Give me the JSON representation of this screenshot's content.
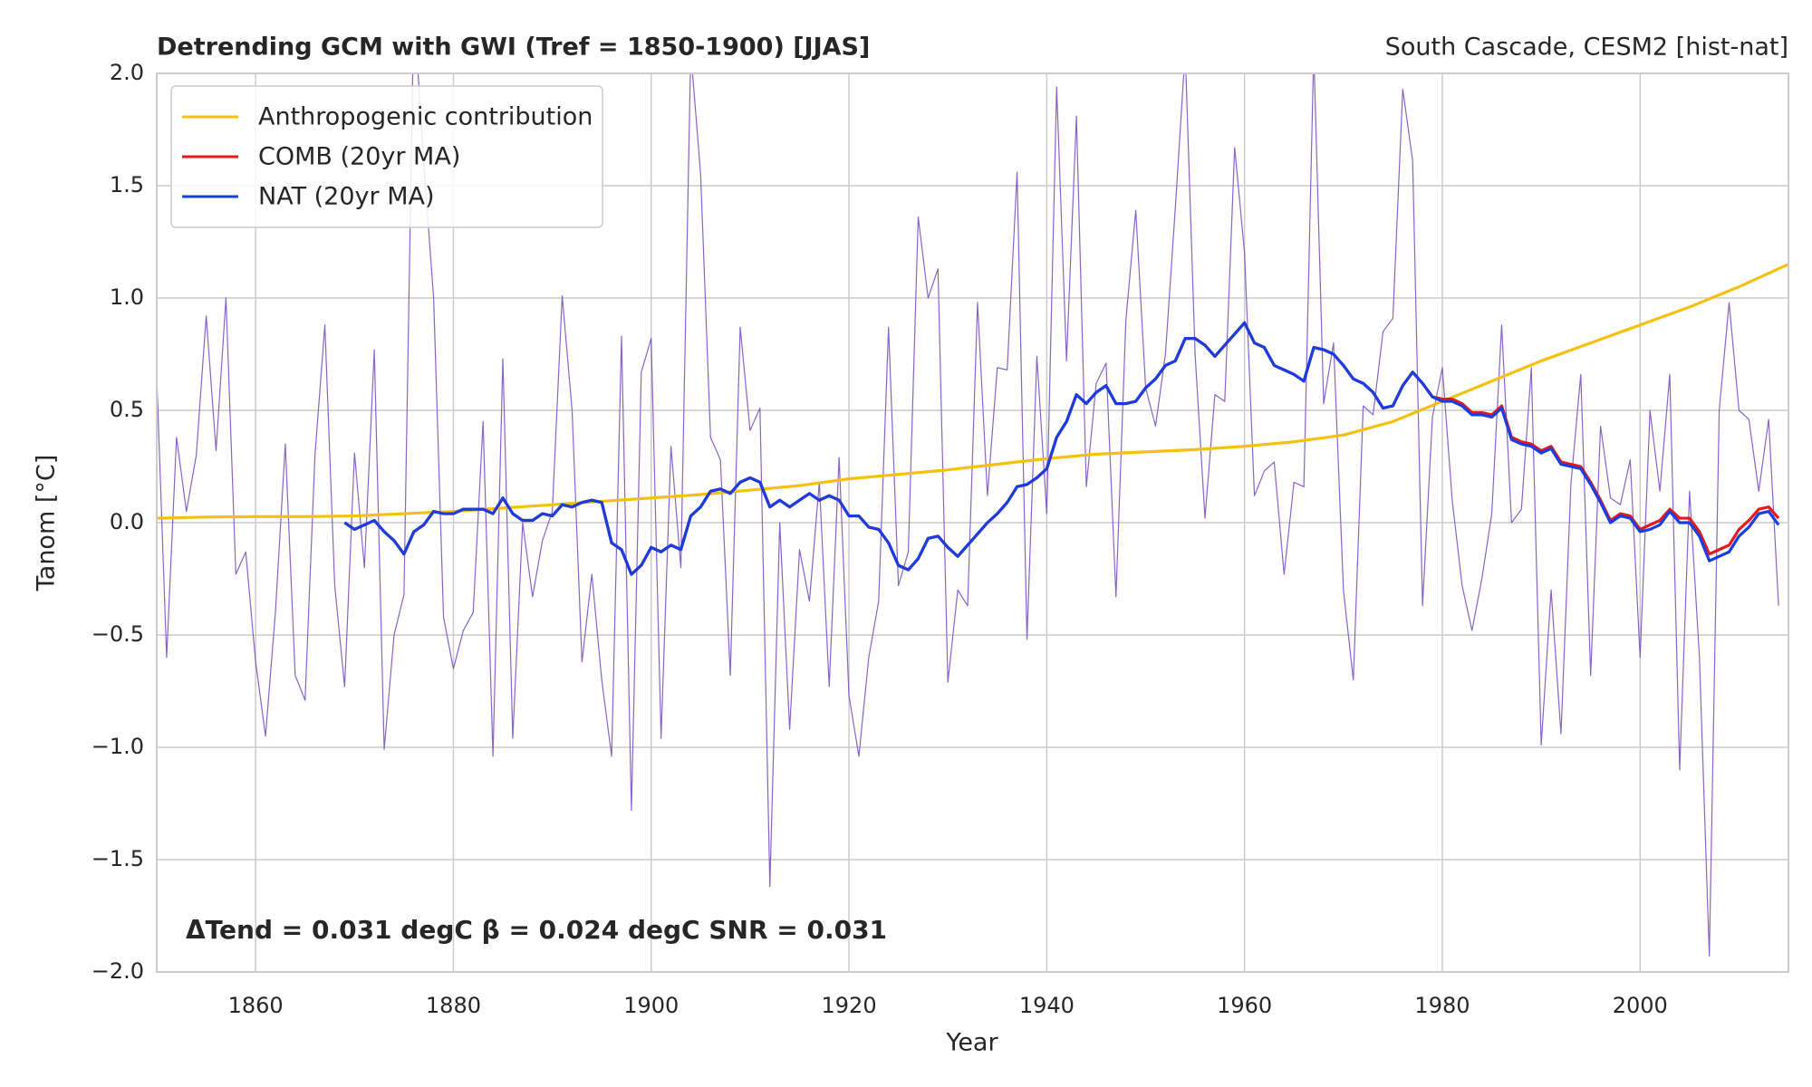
{
  "chart_data": {
    "type": "line",
    "title": "Detrending GCM with GWI (Tref = 1850-1900) [JJAS]",
    "right_title": "South Cascade, CESM2 [hist-nat]",
    "xlabel": "Year",
    "ylabel": "Tanom [°C]",
    "annotation": "ΔTend = 0.031 degC β = 0.024 degC SNR =  0.031",
    "xlim": [
      1850,
      2015
    ],
    "ylim": [
      -2.0,
      2.0
    ],
    "xticks": [
      1860,
      1880,
      1900,
      1920,
      1940,
      1960,
      1980,
      2000
    ],
    "yticks": [
      {
        "value": -2.0,
        "label": "−2.0"
      },
      {
        "value": -1.5,
        "label": "−1.5"
      },
      {
        "value": -1.0,
        "label": "−1.0"
      },
      {
        "value": -0.5,
        "label": "−0.5"
      },
      {
        "value": 0.0,
        "label": "0.0"
      },
      {
        "value": 0.5,
        "label": "0.5"
      },
      {
        "value": 1.0,
        "label": "1.0"
      },
      {
        "value": 1.5,
        "label": "1.5"
      },
      {
        "value": 2.0,
        "label": "2.0"
      }
    ],
    "grid": true,
    "legend": "upper left",
    "series": [
      {
        "color": "#7b52c2",
        "x": [
          1850,
          1851,
          1852,
          1853,
          1854,
          1855,
          1856,
          1857,
          1858,
          1859,
          1860,
          1861,
          1862,
          1863,
          1864,
          1865,
          1866,
          1867,
          1868,
          1869,
          1870,
          1871,
          1872,
          1873,
          1874,
          1875,
          1876,
          1877,
          1878,
          1879,
          1880,
          1881,
          1882,
          1883,
          1884,
          1885,
          1886,
          1887,
          1888,
          1889,
          1890,
          1891,
          1892,
          1893,
          1894,
          1895,
          1896,
          1897,
          1898,
          1899,
          1900,
          1901,
          1902,
          1903,
          1904,
          1905,
          1906,
          1907,
          1908,
          1909,
          1910,
          1911,
          1912,
          1913,
          1914,
          1915,
          1916,
          1917,
          1918,
          1919,
          1920,
          1921,
          1922,
          1923,
          1924,
          1925,
          1926,
          1927,
          1928,
          1929,
          1930,
          1931,
          1932,
          1933,
          1934,
          1935,
          1936,
          1937,
          1938,
          1939,
          1940,
          1941,
          1942,
          1943,
          1944,
          1945,
          1946,
          1947,
          1948,
          1949,
          1950,
          1951,
          1952,
          1953,
          1954,
          1955,
          1956,
          1957,
          1958,
          1959,
          1960,
          1961,
          1962,
          1963,
          1964,
          1965,
          1966,
          1967,
          1968,
          1969,
          1970,
          1971,
          1972,
          1973,
          1974,
          1975,
          1976,
          1977,
          1978,
          1979,
          1980,
          1981,
          1982,
          1983,
          1984,
          1985,
          1986,
          1987,
          1988,
          1989,
          1990,
          1991,
          1992,
          1993,
          1994,
          1995,
          1996,
          1997,
          1998,
          1999,
          2000,
          2001,
          2002,
          2003,
          2004,
          2005,
          2006,
          2007,
          2008,
          2009,
          2010,
          2011,
          2012,
          2013,
          2014
        ],
        "values": [
          0.65,
          -0.6,
          0.38,
          0.05,
          0.3,
          0.92,
          0.32,
          1.0,
          -0.23,
          -0.13,
          -0.62,
          -0.95,
          -0.4,
          0.35,
          -0.68,
          -0.79,
          0.3,
          0.88,
          -0.28,
          -0.73,
          0.31,
          -0.2,
          0.77,
          -1.01,
          -0.5,
          -0.32,
          2.3,
          1.6,
          1.0,
          -0.42,
          -0.65,
          -0.48,
          -0.4,
          0.45,
          -1.04,
          0.73,
          -0.96,
          0.0,
          -0.33,
          -0.08,
          0.05,
          1.01,
          0.5,
          -0.62,
          -0.23,
          -0.7,
          -1.04,
          0.83,
          -1.28,
          0.67,
          0.82,
          -0.96,
          0.34,
          -0.2,
          2.1,
          1.55,
          0.38,
          0.28,
          -0.68,
          0.87,
          0.41,
          0.51,
          -1.62,
          0.0,
          -0.92,
          -0.12,
          -0.35,
          0.18,
          -0.73,
          0.29,
          -0.77,
          -1.04,
          -0.6,
          -0.35,
          0.87,
          -0.28,
          -0.13,
          1.36,
          1.0,
          1.13,
          -0.71,
          -0.3,
          -0.37,
          0.98,
          0.12,
          0.69,
          0.68,
          1.56,
          -0.52,
          0.74,
          0.04,
          1.94,
          0.72,
          1.81,
          0.16,
          0.62,
          0.71,
          -0.33,
          0.9,
          1.39,
          0.6,
          0.43,
          0.75,
          1.4,
          2.1,
          0.75,
          0.02,
          0.57,
          0.54,
          1.67,
          1.2,
          0.12,
          0.23,
          0.27,
          -0.23,
          0.18,
          0.16,
          2.1,
          0.53,
          0.8,
          -0.3,
          -0.7,
          0.52,
          0.48,
          0.85,
          0.91,
          1.93,
          1.61,
          -0.37,
          0.47,
          0.69,
          0.1,
          -0.28,
          -0.48,
          -0.25,
          0.04,
          0.88,
          0.0,
          0.06,
          0.69,
          -0.99,
          -0.3,
          -0.94,
          0.17,
          0.66,
          -0.68,
          0.43,
          0.11,
          0.08,
          0.28,
          -0.6,
          0.5,
          0.14,
          0.66,
          -1.1,
          0.14,
          -0.6,
          -1.93,
          0.5,
          0.98,
          0.5,
          0.46,
          0.14,
          0.46,
          -0.37
        ]
      },
      {
        "name": "Anthropogenic contribution",
        "color": "#f5c00f",
        "x": [
          1850,
          1855,
          1860,
          1865,
          1870,
          1875,
          1880,
          1885,
          1890,
          1895,
          1900,
          1905,
          1910,
          1915,
          1920,
          1925,
          1930,
          1935,
          1940,
          1945,
          1950,
          1955,
          1960,
          1965,
          1970,
          1975,
          1980,
          1985,
          1990,
          1995,
          2000,
          2005,
          2010,
          2015
        ],
        "values": [
          0.02,
          0.025,
          0.027,
          0.027,
          0.03,
          0.04,
          0.05,
          0.065,
          0.08,
          0.095,
          0.11,
          0.125,
          0.145,
          0.165,
          0.195,
          0.215,
          0.235,
          0.26,
          0.285,
          0.305,
          0.315,
          0.325,
          0.34,
          0.36,
          0.39,
          0.45,
          0.54,
          0.63,
          0.72,
          0.8,
          0.88,
          0.96,
          1.05,
          1.15
        ]
      },
      {
        "name": "COMB (20yr MA)",
        "color": "#e41a1c",
        "x": [
          1869,
          1870,
          1871,
          1872,
          1873,
          1874,
          1875,
          1876,
          1877,
          1878,
          1879,
          1880,
          1881,
          1882,
          1883,
          1884,
          1885,
          1886,
          1887,
          1888,
          1889,
          1890,
          1891,
          1892,
          1893,
          1894,
          1895,
          1896,
          1897,
          1898,
          1899,
          1900,
          1901,
          1902,
          1903,
          1904,
          1905,
          1906,
          1907,
          1908,
          1909,
          1910,
          1911,
          1912,
          1913,
          1914,
          1915,
          1916,
          1917,
          1918,
          1919,
          1920,
          1921,
          1922,
          1923,
          1924,
          1925,
          1926,
          1927,
          1928,
          1929,
          1930,
          1931,
          1932,
          1933,
          1934,
          1935,
          1936,
          1937,
          1938,
          1939,
          1940,
          1941,
          1942,
          1943,
          1944,
          1945,
          1946,
          1947,
          1948,
          1949,
          1950,
          1951,
          1952,
          1953,
          1954,
          1955,
          1956,
          1957,
          1958,
          1959,
          1960,
          1961,
          1962,
          1963,
          1964,
          1965,
          1966,
          1967,
          1968,
          1969,
          1970,
          1971,
          1972,
          1973,
          1974,
          1975,
          1976,
          1977,
          1978,
          1979,
          1980,
          1981,
          1982,
          1983,
          1984,
          1985,
          1986,
          1987,
          1988,
          1989,
          1990,
          1991,
          1992,
          1993,
          1994,
          1995,
          1996,
          1997,
          1998,
          1999,
          2000,
          2001,
          2002,
          2003,
          2004,
          2005,
          2006,
          2007,
          2008,
          2009,
          2010,
          2011,
          2012,
          2013,
          2014
        ],
        "values": [
          0.0,
          -0.03,
          -0.01,
          0.01,
          -0.04,
          -0.08,
          -0.14,
          -0.04,
          -0.01,
          0.05,
          0.04,
          0.04,
          0.06,
          0.06,
          0.06,
          0.04,
          0.11,
          0.04,
          0.01,
          0.01,
          0.04,
          0.03,
          0.08,
          0.07,
          0.09,
          0.1,
          0.09,
          -0.09,
          -0.12,
          -0.23,
          -0.19,
          -0.11,
          -0.13,
          -0.1,
          -0.12,
          0.03,
          0.07,
          0.14,
          0.15,
          0.13,
          0.18,
          0.2,
          0.18,
          0.07,
          0.1,
          0.07,
          0.1,
          0.13,
          0.1,
          0.12,
          0.1,
          0.03,
          0.03,
          -0.02,
          -0.03,
          -0.09,
          -0.19,
          -0.21,
          -0.16,
          -0.07,
          -0.06,
          -0.11,
          -0.15,
          -0.1,
          -0.05,
          0.0,
          0.04,
          0.09,
          0.16,
          0.17,
          0.2,
          0.24,
          0.38,
          0.45,
          0.57,
          0.53,
          0.58,
          0.61,
          0.53,
          0.53,
          0.54,
          0.6,
          0.64,
          0.7,
          0.72,
          0.82,
          0.82,
          0.79,
          0.74,
          0.79,
          0.84,
          0.89,
          0.8,
          0.78,
          0.7,
          0.68,
          0.66,
          0.63,
          0.78,
          0.77,
          0.75,
          0.7,
          0.64,
          0.62,
          0.58,
          0.51,
          0.52,
          0.61,
          0.67,
          0.62,
          0.56,
          0.55,
          0.55,
          0.53,
          0.49,
          0.49,
          0.48,
          0.52,
          0.38,
          0.36,
          0.35,
          0.32,
          0.34,
          0.27,
          0.26,
          0.25,
          0.18,
          0.1,
          0.01,
          0.04,
          0.03,
          -0.03,
          -0.01,
          0.01,
          0.06,
          0.02,
          0.02,
          -0.04,
          -0.14,
          -0.12,
          -0.1,
          -0.03,
          0.01,
          0.06,
          0.07,
          0.02
        ]
      },
      {
        "name": "NAT (20yr MA)",
        "color": "#1a3de0",
        "x": [
          1869,
          1870,
          1871,
          1872,
          1873,
          1874,
          1875,
          1876,
          1877,
          1878,
          1879,
          1880,
          1881,
          1882,
          1883,
          1884,
          1885,
          1886,
          1887,
          1888,
          1889,
          1890,
          1891,
          1892,
          1893,
          1894,
          1895,
          1896,
          1897,
          1898,
          1899,
          1900,
          1901,
          1902,
          1903,
          1904,
          1905,
          1906,
          1907,
          1908,
          1909,
          1910,
          1911,
          1912,
          1913,
          1914,
          1915,
          1916,
          1917,
          1918,
          1919,
          1920,
          1921,
          1922,
          1923,
          1924,
          1925,
          1926,
          1927,
          1928,
          1929,
          1930,
          1931,
          1932,
          1933,
          1934,
          1935,
          1936,
          1937,
          1938,
          1939,
          1940,
          1941,
          1942,
          1943,
          1944,
          1945,
          1946,
          1947,
          1948,
          1949,
          1950,
          1951,
          1952,
          1953,
          1954,
          1955,
          1956,
          1957,
          1958,
          1959,
          1960,
          1961,
          1962,
          1963,
          1964,
          1965,
          1966,
          1967,
          1968,
          1969,
          1970,
          1971,
          1972,
          1973,
          1974,
          1975,
          1976,
          1977,
          1978,
          1979,
          1980,
          1981,
          1982,
          1983,
          1984,
          1985,
          1986,
          1987,
          1988,
          1989,
          1990,
          1991,
          1992,
          1993,
          1994,
          1995,
          1996,
          1997,
          1998,
          1999,
          2000,
          2001,
          2002,
          2003,
          2004,
          2005,
          2006,
          2007,
          2008,
          2009,
          2010,
          2011,
          2012,
          2013,
          2014
        ],
        "values": [
          0.0,
          -0.03,
          -0.01,
          0.01,
          -0.04,
          -0.08,
          -0.14,
          -0.04,
          -0.01,
          0.05,
          0.04,
          0.04,
          0.06,
          0.06,
          0.06,
          0.04,
          0.11,
          0.04,
          0.01,
          0.01,
          0.04,
          0.03,
          0.08,
          0.07,
          0.09,
          0.1,
          0.09,
          -0.09,
          -0.12,
          -0.23,
          -0.19,
          -0.11,
          -0.13,
          -0.1,
          -0.12,
          0.03,
          0.07,
          0.14,
          0.15,
          0.13,
          0.18,
          0.2,
          0.18,
          0.07,
          0.1,
          0.07,
          0.1,
          0.13,
          0.1,
          0.12,
          0.1,
          0.03,
          0.03,
          -0.02,
          -0.03,
          -0.09,
          -0.19,
          -0.21,
          -0.16,
          -0.07,
          -0.06,
          -0.11,
          -0.15,
          -0.1,
          -0.05,
          0.0,
          0.04,
          0.09,
          0.16,
          0.17,
          0.2,
          0.24,
          0.38,
          0.45,
          0.57,
          0.53,
          0.58,
          0.61,
          0.53,
          0.53,
          0.54,
          0.6,
          0.64,
          0.7,
          0.72,
          0.82,
          0.82,
          0.79,
          0.74,
          0.79,
          0.84,
          0.89,
          0.8,
          0.78,
          0.7,
          0.68,
          0.66,
          0.63,
          0.78,
          0.77,
          0.75,
          0.7,
          0.64,
          0.62,
          0.58,
          0.51,
          0.52,
          0.61,
          0.67,
          0.62,
          0.56,
          0.54,
          0.54,
          0.52,
          0.48,
          0.48,
          0.47,
          0.51,
          0.37,
          0.35,
          0.34,
          0.31,
          0.33,
          0.26,
          0.25,
          0.24,
          0.17,
          0.09,
          0.0,
          0.03,
          0.02,
          -0.04,
          -0.03,
          -0.01,
          0.05,
          0.0,
          0.0,
          -0.06,
          -0.17,
          -0.15,
          -0.13,
          -0.06,
          -0.02,
          0.04,
          0.05,
          -0.01
        ]
      }
    ]
  }
}
